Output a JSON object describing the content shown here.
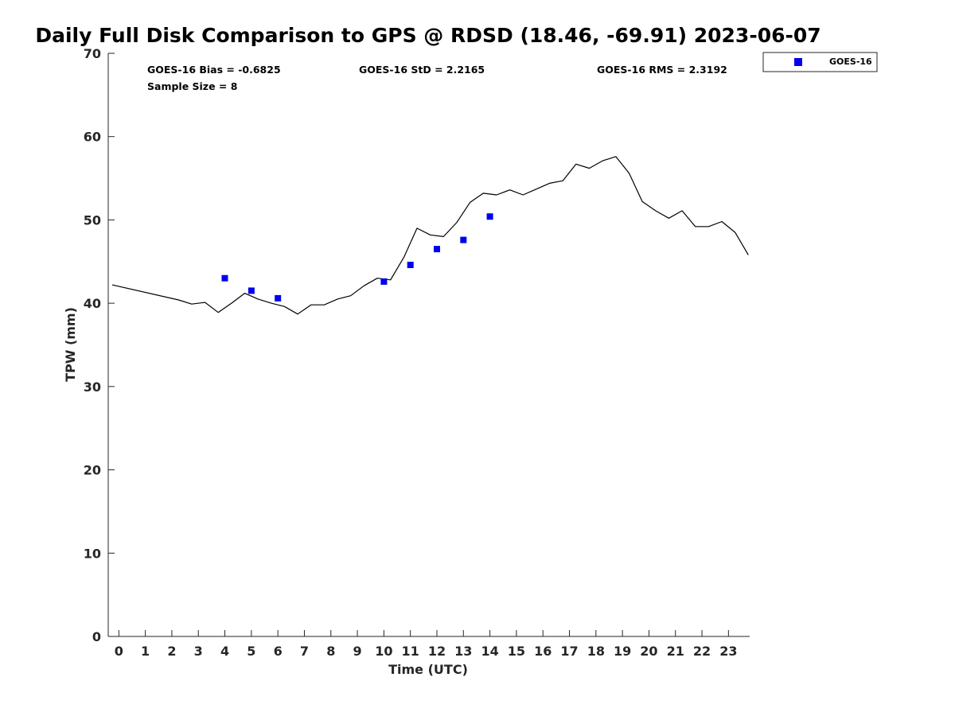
{
  "chart_data": {
    "type": "line",
    "title": "Daily Full Disk Comparison to GPS @ RDSD (18.46, -69.91) 2023-06-07",
    "xlabel": "Time (UTC)",
    "ylabel": "TPW (mm)",
    "xlim": [
      -0.4,
      23.8
    ],
    "ylim": [
      0,
      70
    ],
    "x_ticks": [
      0,
      1,
      2,
      3,
      4,
      5,
      6,
      7,
      8,
      9,
      10,
      11,
      12,
      13,
      14,
      15,
      16,
      17,
      18,
      19,
      20,
      21,
      22,
      23
    ],
    "y_ticks": [
      0,
      10,
      20,
      30,
      40,
      50,
      60,
      70
    ],
    "grid": false,
    "legend_position": "top-right",
    "stats": {
      "bias": "GOES-16 Bias = -0.6825",
      "std": "GOES-16 StD = 2.2165",
      "rms": "GOES-16 RMS = 2.3192",
      "sample_size": "Sample Size = 8"
    },
    "series": [
      {
        "kind": "line",
        "color": "#000000",
        "x": [
          -0.25,
          2.25,
          2.75,
          3.25,
          3.75,
          4.25,
          4.75,
          5.25,
          5.75,
          6.25,
          6.75,
          7.25,
          7.75,
          8.25,
          8.75,
          9.25,
          9.75,
          10.25,
          10.75,
          11.25,
          11.75,
          12.25,
          12.75,
          13.25,
          13.75,
          14.25,
          14.75,
          15.25,
          15.75,
          16.25,
          16.75,
          17.25,
          17.75,
          18.25,
          18.75,
          19.25,
          19.75,
          20.25,
          20.75,
          21.25,
          21.75,
          22.25,
          22.75,
          23.25,
          23.75
        ],
        "values": [
          42.2,
          40.4,
          39.9,
          40.1,
          38.9,
          40.0,
          41.2,
          40.5,
          40.0,
          39.6,
          38.7,
          39.8,
          39.8,
          40.5,
          40.9,
          42.1,
          43.0,
          42.8,
          45.5,
          49.0,
          48.2,
          48.0,
          49.7,
          52.1,
          53.2,
          53.0,
          53.6,
          53.0,
          53.7,
          54.4,
          54.7,
          56.7,
          56.2,
          57.1,
          57.6,
          55.6,
          52.2,
          51.1,
          50.2,
          51.1,
          49.2,
          49.2,
          49.8,
          48.5,
          45.8
        ]
      },
      {
        "kind": "scatter",
        "name": "GOES-16",
        "color": "#0000ee",
        "x": [
          4,
          5,
          6,
          10,
          11,
          12,
          13,
          14
        ],
        "values": [
          43.0,
          41.5,
          40.6,
          42.6,
          44.6,
          46.5,
          47.6,
          50.4
        ]
      }
    ]
  }
}
